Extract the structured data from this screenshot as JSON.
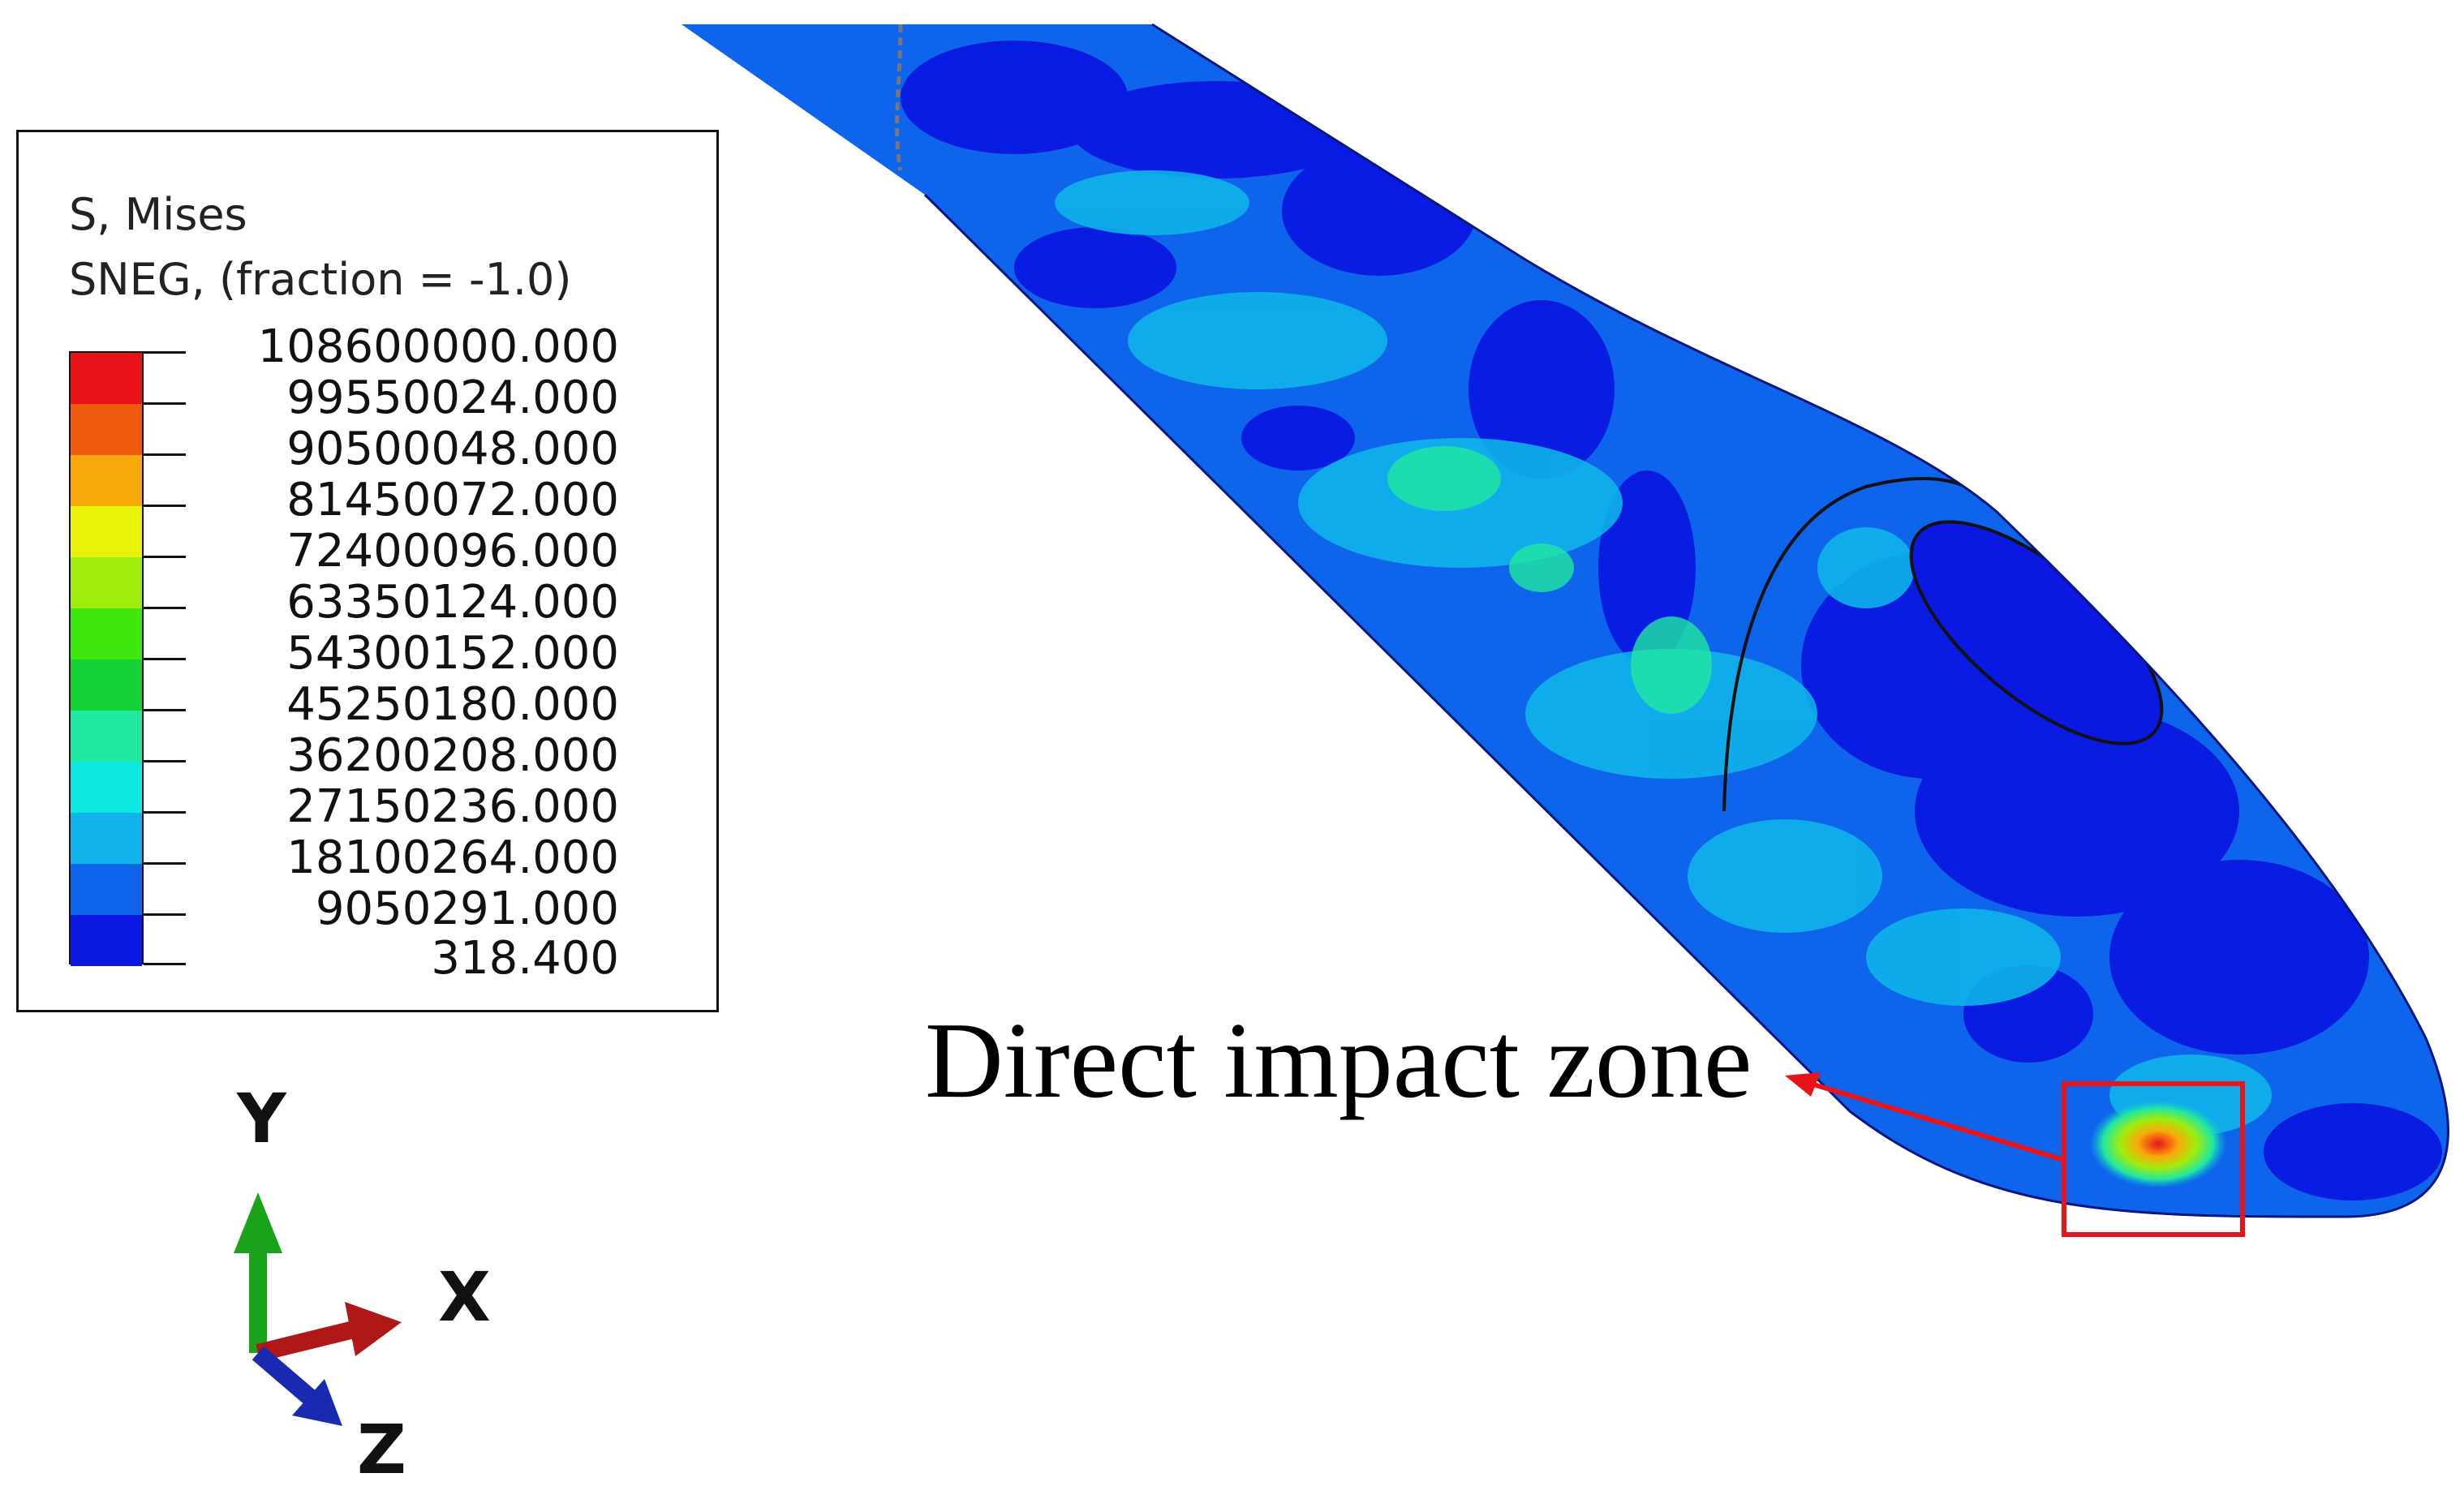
{
  "legend": {
    "title_line1": "S, Mises",
    "title_line2": "SNEG, (fraction = -1.0)",
    "tick_labels": [
      "108600000.000",
      "99550024.000",
      "90500048.000",
      "81450072.000",
      "72400096.000",
      "63350124.000",
      "54300152.000",
      "45250180.000",
      "36200208.000",
      "27150236.000",
      "18100264.000",
      "9050291.000",
      "318.400"
    ],
    "band_colors": [
      "#e8141a",
      "#f05a0c",
      "#f9aa0a",
      "#eaf20a",
      "#a0ec0c",
      "#3ee80c",
      "#14d236",
      "#20e8a0",
      "#0ee8e2",
      "#10b2ea",
      "#0e64ea",
      "#0a18e2"
    ]
  },
  "annotation": {
    "label": "Direct impact zone",
    "arrow_color": "#e8141a",
    "box_color": "#e8141a"
  },
  "triad": {
    "y_label": "Y",
    "x_label": "X",
    "z_label": "Z",
    "y_color": "#1aa21a",
    "x_color": "#b01818",
    "z_color": "#1a2ab0"
  }
}
